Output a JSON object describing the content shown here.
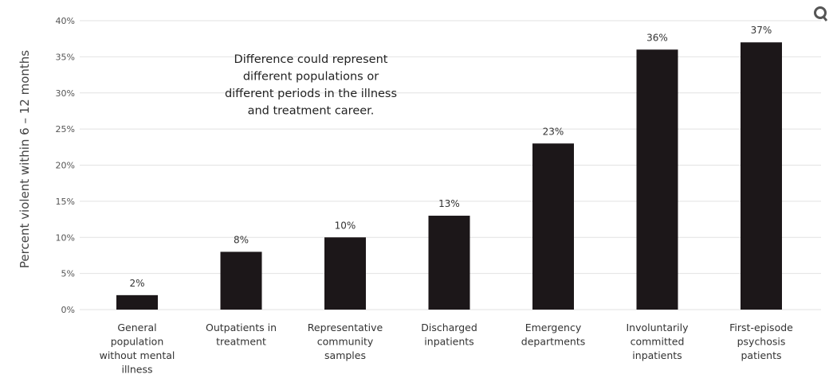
{
  "chart_data": {
    "type": "bar",
    "categories": [
      [
        "General",
        "population",
        "without mental",
        "illness"
      ],
      [
        "Outpatients in",
        "treatment"
      ],
      [
        "Representative",
        "community",
        "samples"
      ],
      [
        "Discharged",
        "inpatients"
      ],
      [
        "Emergency",
        "departments"
      ],
      [
        "Involuntarily",
        "committed",
        "inpatients"
      ],
      [
        "First-episode",
        "psychosis",
        "patients"
      ]
    ],
    "values": [
      2,
      8,
      10,
      13,
      23,
      36,
      37
    ],
    "data_labels": [
      "2%",
      "8%",
      "10%",
      "13%",
      "23%",
      "36%",
      "37%"
    ],
    "ylabel": "Percent violent within 6 – 12 months",
    "ylim": [
      0,
      40
    ],
    "yticks": [
      0,
      5,
      10,
      15,
      20,
      25,
      30,
      35,
      40
    ],
    "ytick_labels": [
      "0%",
      "5%",
      "10%",
      "15%",
      "20%",
      "25%",
      "30%",
      "35%",
      "40%"
    ],
    "annotation": [
      "Difference could represent",
      "different populations or",
      "different periods in the illness",
      "and treatment career."
    ],
    "bar_color": "#1c1719",
    "grid": true,
    "legend": "none"
  }
}
